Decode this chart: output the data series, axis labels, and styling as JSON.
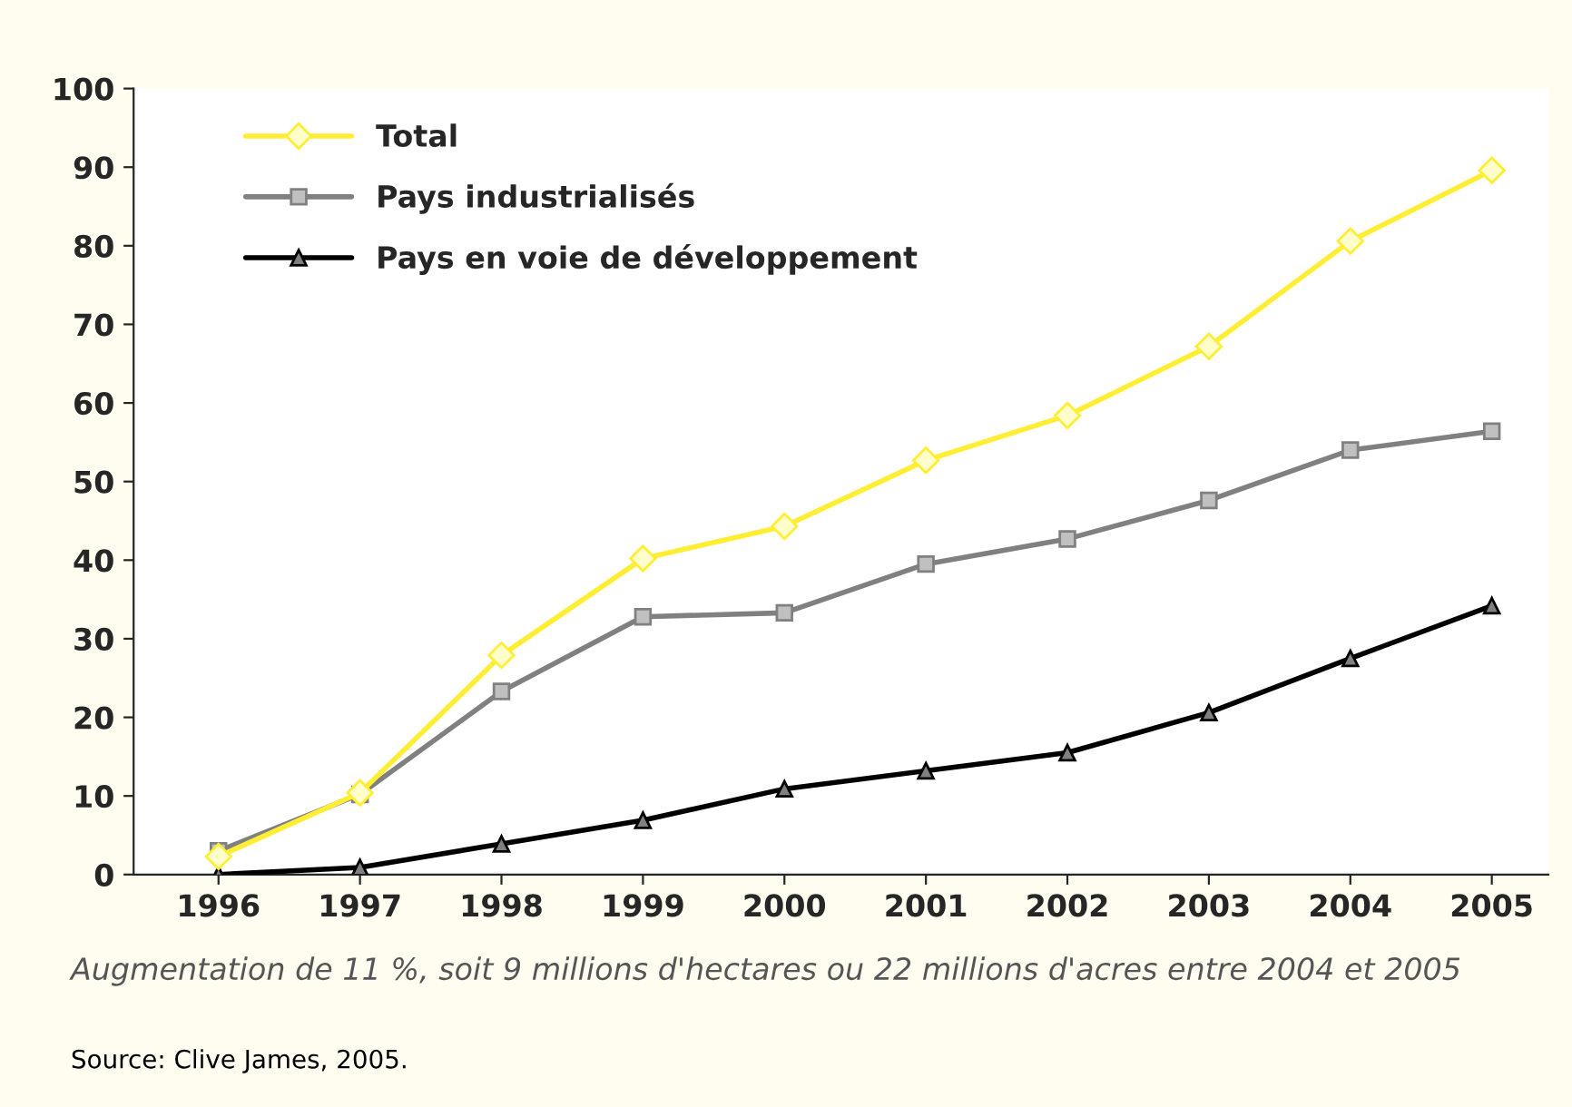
{
  "chart_data": {
    "type": "line",
    "categories": [
      "1996",
      "1997",
      "1998",
      "1999",
      "2000",
      "2001",
      "2002",
      "2003",
      "2004",
      "2005"
    ],
    "series": [
      {
        "name": "Total",
        "color": "#ffee33",
        "marker": "diamond",
        "values": [
          2.3,
          10.4,
          27.9,
          40.2,
          44.3,
          52.7,
          58.4,
          67.2,
          80.6,
          89.6
        ]
      },
      {
        "name": "Pays industrialisés",
        "color": "#808080",
        "marker": "square",
        "values": [
          3.0,
          10.2,
          23.3,
          32.8,
          33.3,
          39.5,
          42.7,
          47.6,
          54.0,
          56.4
        ]
      },
      {
        "name": "Pays en voie de développement",
        "color": "#000000",
        "marker": "triangle",
        "values": [
          0,
          0.9,
          3.9,
          6.9,
          10.9,
          13.2,
          15.5,
          20.6,
          27.5,
          34.2
        ]
      }
    ],
    "ylim": [
      0,
      100
    ],
    "yticks": [
      0,
      10,
      20,
      30,
      40,
      50,
      60,
      70,
      80,
      90,
      100
    ],
    "grid": false,
    "legend": "top left",
    "line_style": "solid",
    "annotations": [
      "Augmentation de 11 %, soit 9 millions d'hectares ou 22 millions d'acres entre 2004 et 2005",
      "Source: Clive James, 2005."
    ]
  }
}
